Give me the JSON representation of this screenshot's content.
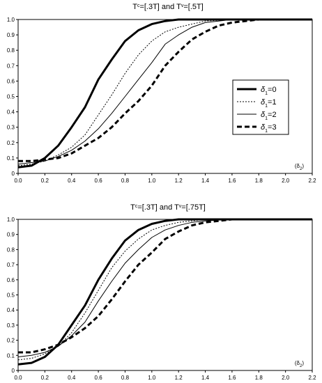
{
  "chart_data": [
    {
      "type": "line",
      "title_main": "T",
      "title_sup1": "c",
      "title_mid": "=[.3T] and T",
      "title_sup2": "v",
      "title_end": "=[.5T]",
      "xlabel": "(δ",
      "xlabel_sub": "2",
      "xlabel_end": ")",
      "xlim": [
        0,
        2.2
      ],
      "ylim": [
        0,
        1
      ],
      "x_ticks": [
        "0.0",
        "0.2",
        "0.4",
        "0.6",
        "0.8",
        "1.0",
        "1.2",
        "1.4",
        "1.6",
        "1.8",
        "2.0",
        "2.2"
      ],
      "y_ticks": [
        "0",
        "0.1",
        "0.2",
        "0.3",
        "0.4",
        "0.5",
        "0.6",
        "0.7",
        "0.8",
        "0.9",
        "1.0"
      ],
      "legend_position": "right",
      "series": [
        {
          "name": "δ",
          "sub": "1",
          "suffix": "=0",
          "style": "thick-solid",
          "x": [
            0.0,
            0.1,
            0.2,
            0.3,
            0.4,
            0.5,
            0.6,
            0.7,
            0.8,
            0.9,
            1.0,
            1.1,
            1.2,
            1.4,
            1.6,
            1.8,
            2.0,
            2.2
          ],
          "y": [
            0.04,
            0.05,
            0.1,
            0.18,
            0.3,
            0.43,
            0.61,
            0.74,
            0.86,
            0.93,
            0.97,
            0.99,
            1.0,
            1.0,
            1.0,
            1.0,
            1.0,
            1.0
          ]
        },
        {
          "name": "δ",
          "sub": "1",
          "suffix": "=1",
          "style": "dotted",
          "x": [
            0.0,
            0.1,
            0.2,
            0.3,
            0.4,
            0.5,
            0.6,
            0.7,
            0.8,
            0.9,
            1.0,
            1.1,
            1.2,
            1.3,
            1.4,
            1.5,
            1.6,
            1.8,
            2.0,
            2.2
          ],
          "y": [
            0.05,
            0.06,
            0.08,
            0.12,
            0.17,
            0.25,
            0.38,
            0.51,
            0.65,
            0.77,
            0.86,
            0.92,
            0.95,
            0.97,
            0.99,
            0.995,
            1.0,
            1.0,
            1.0,
            1.0
          ]
        },
        {
          "name": "δ",
          "sub": "1",
          "suffix": "=2",
          "style": "thin-solid",
          "x": [
            0.0,
            0.1,
            0.2,
            0.3,
            0.4,
            0.5,
            0.6,
            0.7,
            0.8,
            0.9,
            1.0,
            1.1,
            1.2,
            1.3,
            1.4,
            1.5,
            1.6,
            1.8,
            2.0,
            2.2
          ],
          "y": [
            0.06,
            0.07,
            0.08,
            0.11,
            0.15,
            0.21,
            0.29,
            0.39,
            0.5,
            0.61,
            0.72,
            0.84,
            0.9,
            0.95,
            0.98,
            0.99,
            1.0,
            1.0,
            1.0,
            1.0
          ]
        },
        {
          "name": "δ",
          "sub": "1",
          "suffix": "=3",
          "style": "thick-dashed",
          "x": [
            0.0,
            0.1,
            0.2,
            0.3,
            0.4,
            0.5,
            0.6,
            0.7,
            0.8,
            0.9,
            1.0,
            1.1,
            1.2,
            1.3,
            1.4,
            1.5,
            1.6,
            1.7,
            1.8,
            2.0,
            2.2
          ],
          "y": [
            0.08,
            0.08,
            0.09,
            0.1,
            0.13,
            0.18,
            0.23,
            0.3,
            0.39,
            0.47,
            0.57,
            0.7,
            0.79,
            0.87,
            0.92,
            0.96,
            0.98,
            0.99,
            1.0,
            1.0,
            1.0
          ]
        }
      ]
    },
    {
      "type": "line",
      "title_main": "T",
      "title_sup1": "c",
      "title_mid": "=[.3T] and T",
      "title_sup2": "v",
      "title_end": "=[.75T]",
      "xlabel": "(δ",
      "xlabel_sub": "2",
      "xlabel_end": ")",
      "xlim": [
        0,
        2.2
      ],
      "ylim": [
        0,
        1
      ],
      "x_ticks": [
        "0.0",
        "0.2",
        "0.4",
        "0.6",
        "0.8",
        "1.0",
        "1.2",
        "1.4",
        "1.6",
        "1.8",
        "2.0",
        "2.2"
      ],
      "y_ticks": [
        "0",
        "0.1",
        "0.2",
        "0.3",
        "0.4",
        "0.5",
        "0.6",
        "0.7",
        "0.8",
        "0.9",
        "1.0"
      ],
      "series": [
        {
          "name": "δ",
          "sub": "1",
          "suffix": "=0",
          "style": "thick-solid",
          "x": [
            0.0,
            0.1,
            0.2,
            0.3,
            0.4,
            0.5,
            0.6,
            0.7,
            0.8,
            0.9,
            1.0,
            1.1,
            1.2,
            1.4,
            1.6,
            1.8,
            2.0,
            2.2
          ],
          "y": [
            0.04,
            0.05,
            0.09,
            0.17,
            0.3,
            0.43,
            0.6,
            0.74,
            0.86,
            0.93,
            0.97,
            0.99,
            1.0,
            1.0,
            1.0,
            1.0,
            1.0,
            1.0
          ]
        },
        {
          "name": "δ",
          "sub": "1",
          "suffix": "=1",
          "style": "dotted",
          "x": [
            0.0,
            0.1,
            0.2,
            0.3,
            0.4,
            0.5,
            0.6,
            0.7,
            0.8,
            0.9,
            1.0,
            1.1,
            1.2,
            1.3,
            1.4,
            1.6,
            1.8,
            2.0,
            2.2
          ],
          "y": [
            0.07,
            0.08,
            0.11,
            0.16,
            0.25,
            0.38,
            0.53,
            0.68,
            0.79,
            0.87,
            0.93,
            0.96,
            0.98,
            0.99,
            1.0,
            1.0,
            1.0,
            1.0,
            1.0
          ]
        },
        {
          "name": "δ",
          "sub": "1",
          "suffix": "=2",
          "style": "thin-solid",
          "x": [
            0.0,
            0.1,
            0.2,
            0.3,
            0.4,
            0.5,
            0.6,
            0.7,
            0.8,
            0.9,
            1.0,
            1.1,
            1.2,
            1.3,
            1.4,
            1.6,
            1.8,
            2.0,
            2.2
          ],
          "y": [
            0.09,
            0.1,
            0.12,
            0.16,
            0.23,
            0.32,
            0.46,
            0.59,
            0.71,
            0.8,
            0.88,
            0.93,
            0.96,
            0.98,
            0.99,
            1.0,
            1.0,
            1.0,
            1.0
          ]
        },
        {
          "name": "δ",
          "sub": "1",
          "suffix": "=3",
          "style": "thick-dashed",
          "x": [
            0.0,
            0.1,
            0.2,
            0.3,
            0.4,
            0.5,
            0.6,
            0.7,
            0.8,
            0.9,
            1.0,
            1.1,
            1.2,
            1.3,
            1.4,
            1.5,
            1.6,
            1.8,
            2.0,
            2.2
          ],
          "y": [
            0.12,
            0.12,
            0.14,
            0.17,
            0.22,
            0.28,
            0.36,
            0.47,
            0.59,
            0.7,
            0.78,
            0.87,
            0.92,
            0.96,
            0.98,
            0.99,
            1.0,
            1.0,
            1.0,
            1.0
          ]
        }
      ]
    }
  ]
}
